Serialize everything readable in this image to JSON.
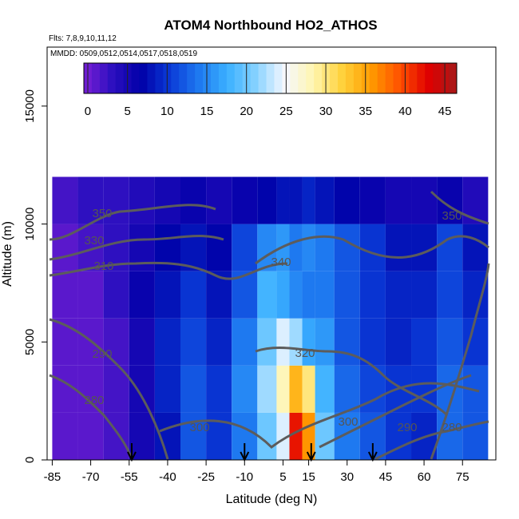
{
  "chart_data": {
    "type": "heatmap",
    "title": "ATOM4 Northbound HO2_ATHOS",
    "subtitle_flights": "Flts: 7,8,9,10,11,12",
    "subtitle_dates": "MMDD: 0509,0512,0514,0517,0518,0519",
    "xlabel": "Latitude (deg N)",
    "ylabel": "Altitude (m)",
    "xlim": [
      -87,
      88
    ],
    "ylim": [
      0,
      17500
    ],
    "x_ticks": [
      -85,
      -70,
      -55,
      -40,
      -25,
      -10,
      5,
      15,
      30,
      45,
      60,
      75
    ],
    "x_tick_labels": [
      "-85",
      "-70",
      "-55",
      "-40",
      "-25",
      "-10",
      "5",
      "15",
      "30",
      "45",
      "60",
      "75"
    ],
    "y_ticks": [
      0,
      5000,
      10000,
      15000
    ],
    "y_tick_labels": [
      "0",
      "5000",
      "10000",
      "15000"
    ],
    "colorbar": {
      "range": [
        -0.5,
        46.5
      ],
      "ticks": [
        0,
        5,
        10,
        15,
        20,
        25,
        30,
        35,
        40,
        45
      ],
      "tick_labels": [
        "0",
        "5",
        "10",
        "15",
        "20",
        "25",
        "30",
        "35",
        "40",
        "45"
      ],
      "colors": [
        "#7a1fd6",
        "#2c0fbf",
        "#0000a8",
        "#0a3ad6",
        "#1e78f0",
        "#3ab0ff",
        "#86d2ff",
        "#f5f7ff",
        "#fff6b0",
        "#ffd23c",
        "#ff9c00",
        "#ff5200",
        "#e00000",
        "#a61a1a"
      ]
    },
    "heatmap_cells_lat": [
      -80,
      -70,
      -60,
      -50,
      -40,
      -30,
      -20,
      -10,
      0,
      5,
      10,
      15,
      20,
      30,
      40,
      50,
      60,
      70,
      80
    ],
    "heatmap_cells_alt": [
      1000,
      3000,
      5000,
      7000,
      9000,
      11000
    ],
    "heatmap_values": [
      [
        1,
        1,
        2,
        5,
        8,
        12,
        10,
        14,
        20,
        24,
        42,
        36,
        20,
        14,
        12,
        10,
        9,
        13,
        12
      ],
      [
        1,
        1,
        2,
        5,
        9,
        12,
        10,
        15,
        22,
        28,
        34,
        30,
        18,
        13,
        11,
        10,
        10,
        13,
        12
      ],
      [
        1,
        1,
        2,
        5,
        9,
        11,
        9,
        14,
        20,
        24,
        22,
        17,
        16,
        12,
        10,
        9,
        10,
        12,
        10
      ],
      [
        1,
        1,
        3,
        6,
        8,
        10,
        8,
        12,
        18,
        17,
        15,
        14,
        14,
        12,
        10,
        9,
        9,
        11,
        9
      ],
      [
        1,
        2,
        3,
        5,
        7,
        8,
        7,
        11,
        15,
        16,
        14,
        15,
        14,
        12,
        10,
        8,
        8,
        11,
        8
      ],
      [
        2,
        3,
        3,
        4,
        5,
        6,
        5,
        6,
        7,
        8,
        8,
        9,
        8,
        7,
        6,
        5,
        5,
        6,
        4
      ]
    ],
    "contour_labels": [
      "350",
      "330",
      "310",
      "290",
      "280",
      "300",
      "340",
      "320",
      "300",
      "290",
      "280",
      "350"
    ],
    "profile_markers_lat": [
      -54,
      -10,
      16,
      40
    ]
  }
}
